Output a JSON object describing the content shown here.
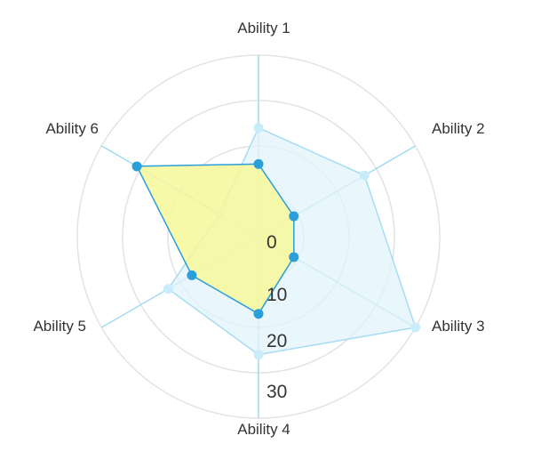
{
  "chart_data": {
    "type": "radar",
    "axes": [
      "Ability 1",
      "Ability 2",
      "Ability 3",
      "Ability 4",
      "Ability 5",
      "Ability 6"
    ],
    "r_ticks": [
      0,
      10,
      20,
      30
    ],
    "r_range": [
      0,
      40
    ],
    "grid": true,
    "series": [
      {
        "values": [
          24,
          27,
          40,
          26,
          23,
          10
        ],
        "fill": "#e2f3fb",
        "stroke": "#a6dcf2",
        "point": "#c9ecfa"
      },
      {
        "values": [
          16,
          9,
          9,
          17,
          17,
          31
        ],
        "fill": "#f7f79a",
        "stroke": "#2b9fd9",
        "point": "#2b9fd9"
      }
    ],
    "colors": {
      "grid": "#e3e3e3",
      "spoke": "#9fdcf1"
    }
  }
}
